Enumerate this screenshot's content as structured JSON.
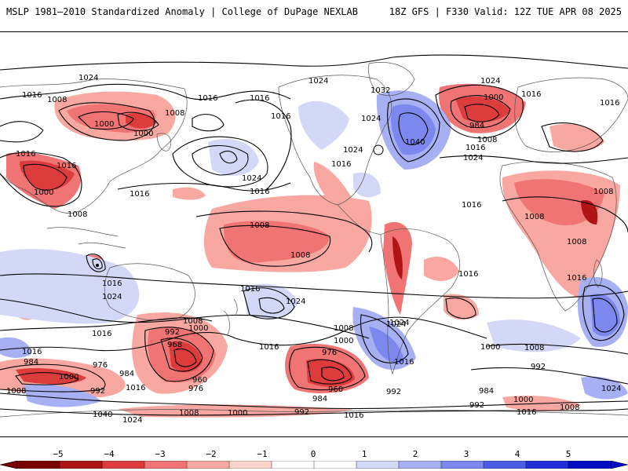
{
  "header": {
    "left_title": "MSLP 1981–2010 Standardized Anomaly | College of DuPage NEXLAB",
    "right_title": "18Z GFS | F330 Valid: 12Z TUE APR 08 2025"
  },
  "contour_labels": [
    {
      "text": "1024"
    },
    {
      "text": "1016"
    },
    {
      "text": "1008"
    },
    {
      "text": "1016"
    },
    {
      "text": "1000"
    },
    {
      "text": "1000"
    },
    {
      "text": "1008"
    },
    {
      "text": "1016"
    },
    {
      "text": "1016"
    },
    {
      "text": "1000"
    },
    {
      "text": "1008"
    },
    {
      "text": "1016"
    },
    {
      "text": "1016"
    },
    {
      "text": "1024"
    },
    {
      "text": "1016"
    },
    {
      "text": "1024"
    },
    {
      "text": "1032"
    },
    {
      "text": "1024"
    },
    {
      "text": "1024"
    },
    {
      "text": "1040"
    },
    {
      "text": "1016"
    },
    {
      "text": "1024"
    },
    {
      "text": "1016"
    },
    {
      "text": "1000"
    },
    {
      "text": "984"
    },
    {
      "text": "1016"
    },
    {
      "text": "1016"
    },
    {
      "text": "1008"
    },
    {
      "text": "1024"
    },
    {
      "text": "1016"
    },
    {
      "text": "1008"
    },
    {
      "text": "1008"
    },
    {
      "text": "1008"
    },
    {
      "text": "1016"
    },
    {
      "text": "1016"
    },
    {
      "text": "1016"
    },
    {
      "text": "1024"
    },
    {
      "text": "1016"
    },
    {
      "text": "1016"
    },
    {
      "text": "1024"
    },
    {
      "text": "1024"
    },
    {
      "text": "1008"
    },
    {
      "text": "1008"
    },
    {
      "text": "992"
    },
    {
      "text": "1000"
    },
    {
      "text": "968"
    },
    {
      "text": "960"
    },
    {
      "text": "976"
    },
    {
      "text": "984"
    },
    {
      "text": "1016"
    },
    {
      "text": "1008"
    },
    {
      "text": "1016"
    },
    {
      "text": "984"
    },
    {
      "text": "976"
    },
    {
      "text": "1000"
    },
    {
      "text": "992"
    },
    {
      "text": "1008"
    },
    {
      "text": "1016"
    },
    {
      "text": "1040"
    },
    {
      "text": "1024"
    },
    {
      "text": "1008"
    },
    {
      "text": "1000"
    },
    {
      "text": "976"
    },
    {
      "text": "960"
    },
    {
      "text": "984"
    },
    {
      "text": "992"
    },
    {
      "text": "1016"
    },
    {
      "text": "1024"
    },
    {
      "text": "1016"
    },
    {
      "text": "992"
    },
    {
      "text": "1016"
    },
    {
      "text": "1008"
    },
    {
      "text": "1000"
    },
    {
      "text": "1000"
    },
    {
      "text": "1008"
    },
    {
      "text": "992"
    },
    {
      "text": "984"
    },
    {
      "text": "1000"
    },
    {
      "text": "992"
    },
    {
      "text": "1016"
    },
    {
      "text": "1008"
    },
    {
      "text": "1024"
    }
  ],
  "colorbar": {
    "ticks": [
      "−5",
      "−4",
      "−3",
      "−2",
      "−1",
      "0",
      "1",
      "2",
      "3",
      "4",
      "5"
    ],
    "colors": [
      "#7a0000",
      "#b01515",
      "#dc3c3c",
      "#f07474",
      "#f8a8a0",
      "#fcd4cc",
      "#ffffff",
      "#ffffff",
      "#d4d8f8",
      "#a8b0f4",
      "#7c88ee",
      "#4c5ce4",
      "#2030d8",
      "#0010c0"
    ]
  }
}
